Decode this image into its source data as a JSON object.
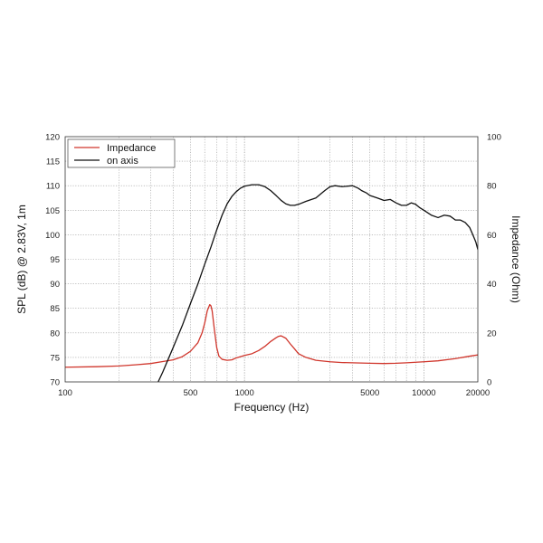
{
  "chart_data": {
    "type": "line",
    "xlabel": "Frequency (Hz)",
    "ylabel_left": "SPL (dB) @ 2.83V, 1m",
    "ylabel_right": "Impedance (Ohm)",
    "x_scale": "log",
    "xlim": [
      100,
      20000
    ],
    "ylim_left": [
      70,
      120
    ],
    "ylim_right": [
      0,
      100
    ],
    "x_ticks": [
      100,
      500,
      1000,
      5000,
      10000,
      20000
    ],
    "x_tick_labels": [
      "100",
      "500",
      "1000",
      "5000",
      "10000",
      "20000"
    ],
    "y_left_ticks": [
      70,
      75,
      80,
      85,
      90,
      95,
      100,
      105,
      110,
      115,
      120
    ],
    "y_right_ticks": [
      0,
      20,
      40,
      60,
      80,
      100
    ],
    "grid": "dotted",
    "legend_position": "top-left",
    "series": [
      {
        "name": "Impedance",
        "axis": "right",
        "color": "#d0362c",
        "x": [
          100,
          150,
          200,
          250,
          300,
          350,
          400,
          450,
          500,
          550,
          580,
          600,
          620,
          640,
          650,
          660,
          680,
          700,
          720,
          750,
          800,
          850,
          900,
          1000,
          1100,
          1200,
          1300,
          1400,
          1500,
          1550,
          1600,
          1700,
          1800,
          1900,
          2000,
          2200,
          2500,
          3000,
          3500,
          4000,
          5000,
          6000,
          7000,
          8000,
          10000,
          12000,
          15000,
          18000,
          20000
        ],
        "values": [
          6.0,
          6.2,
          6.5,
          7.0,
          7.5,
          8.3,
          9.0,
          10.3,
          12.5,
          16.0,
          20.0,
          24.0,
          29.0,
          31.5,
          31.0,
          29.0,
          21.0,
          14.0,
          10.5,
          9.2,
          8.8,
          9.0,
          9.8,
          10.8,
          11.5,
          12.8,
          14.5,
          16.5,
          18.0,
          18.6,
          18.8,
          17.8,
          15.5,
          13.5,
          11.5,
          10.0,
          8.8,
          8.2,
          7.9,
          7.8,
          7.6,
          7.5,
          7.6,
          7.8,
          8.2,
          8.6,
          9.5,
          10.5,
          11.0
        ]
      },
      {
        "name": "on axis",
        "axis": "left",
        "color": "#111111",
        "x": [
          330,
          350,
          400,
          450,
          500,
          550,
          600,
          650,
          700,
          750,
          800,
          850,
          900,
          950,
          1000,
          1100,
          1200,
          1300,
          1400,
          1500,
          1600,
          1700,
          1800,
          1900,
          2000,
          2200,
          2500,
          2800,
          3000,
          3200,
          3500,
          4000,
          4300,
          4500,
          4800,
          5000,
          5500,
          6000,
          6500,
          7000,
          7500,
          8000,
          8500,
          9000,
          9500,
          10000,
          11000,
          12000,
          13000,
          14000,
          15000,
          16000,
          17000,
          18000,
          18500,
          19000,
          19500,
          20000
        ],
        "values": [
          70.0,
          72.0,
          77.0,
          81.5,
          86.0,
          90.0,
          94.0,
          97.5,
          101.0,
          104.0,
          106.3,
          107.8,
          108.8,
          109.5,
          109.9,
          110.2,
          110.2,
          109.8,
          109.0,
          108.0,
          107.0,
          106.3,
          106.0,
          106.0,
          106.2,
          106.8,
          107.5,
          109.0,
          109.8,
          110.0,
          109.8,
          110.0,
          109.5,
          109.0,
          108.5,
          108.0,
          107.5,
          107.0,
          107.2,
          106.5,
          106.0,
          106.0,
          106.5,
          106.2,
          105.5,
          105.0,
          104.0,
          103.5,
          104.0,
          103.8,
          103.0,
          103.0,
          102.5,
          101.5,
          100.5,
          99.5,
          98.5,
          97.0
        ]
      }
    ]
  }
}
